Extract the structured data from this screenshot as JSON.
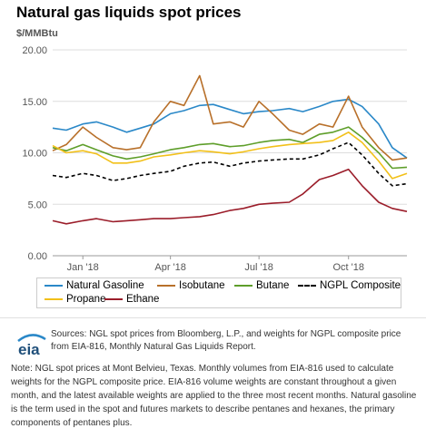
{
  "title": "Natural gas liquids spot prices",
  "unit_label": "$/MMBtu",
  "legend_items": [
    "Natural Gasoline",
    "Isobutane",
    "Butane",
    "NGPL Composite",
    "Propane",
    "Ethane"
  ],
  "sources_text": "Sources: NGL spot prices from Bloomberg, L.P., and weights for NGPL composite price from EIA-816, Monthly Natural Gas Liquids Report.",
  "note_text": "Note: NGL spot prices at Mont Belvieu, Texas. Monthly volumes from EIA-816 used to calculate weights for the NGPL composite price. EIA-816 volume weights are constant throughout a given month, and the latest available weights are applied to the three most recent months. Natural gasoline is the term used in the spot and futures markets to describe pentanes and hexanes, the primary components of pentanes plus.",
  "logo_text": "eia",
  "chart_data": {
    "type": "line",
    "title": "Natural gas liquids spot prices",
    "ylabel": "$/MMBtu",
    "xlabel": "",
    "ylim": [
      0,
      20
    ],
    "yticks": [
      "0.00",
      "5.00",
      "10.00",
      "15.00",
      "20.00"
    ],
    "xlim": [
      "2017-12-01",
      "2018-11-30"
    ],
    "xticks": [
      {
        "label": "Jan '18",
        "date": "2018-01-01"
      },
      {
        "label": "Apr '18",
        "date": "2018-04-01"
      },
      {
        "label": "Jul '18",
        "date": "2018-07-01"
      },
      {
        "label": "Oct '18",
        "date": "2018-10-01"
      }
    ],
    "grid": "horizontal",
    "legend_position": "bottom",
    "x": [
      "2017-12-01",
      "2017-12-15",
      "2018-01-01",
      "2018-01-15",
      "2018-02-01",
      "2018-02-15",
      "2018-03-01",
      "2018-03-15",
      "2018-04-01",
      "2018-04-15",
      "2018-05-01",
      "2018-05-15",
      "2018-06-01",
      "2018-06-15",
      "2018-07-01",
      "2018-07-15",
      "2018-08-01",
      "2018-08-15",
      "2018-09-01",
      "2018-09-15",
      "2018-10-01",
      "2018-10-15",
      "2018-11-01",
      "2018-11-15",
      "2018-11-30"
    ],
    "series": [
      {
        "name": "Natural Gasoline",
        "color": "#2a88c8",
        "values": [
          12.4,
          12.2,
          12.8,
          13.0,
          12.5,
          12.0,
          12.4,
          12.8,
          13.8,
          14.1,
          14.6,
          14.7,
          14.2,
          13.8,
          14.0,
          14.1,
          14.3,
          14.0,
          14.5,
          15.0,
          15.2,
          14.5,
          12.8,
          10.5,
          9.5
        ]
      },
      {
        "name": "Isobutane",
        "color": "#b8702a",
        "values": [
          10.2,
          10.8,
          12.5,
          11.5,
          10.5,
          10.3,
          10.5,
          13.0,
          15.0,
          14.6,
          17.5,
          12.8,
          13.0,
          12.5,
          15.0,
          13.8,
          12.2,
          11.8,
          12.8,
          12.5,
          15.5,
          12.5,
          10.5,
          9.3,
          9.5
        ]
      },
      {
        "name": "Butane",
        "color": "#5e9e2a",
        "values": [
          10.5,
          10.2,
          10.8,
          10.3,
          9.7,
          9.4,
          9.6,
          9.9,
          10.3,
          10.5,
          10.8,
          10.9,
          10.6,
          10.7,
          11.0,
          11.2,
          11.3,
          11.0,
          11.8,
          12.0,
          12.5,
          11.5,
          10.0,
          8.5,
          8.6
        ]
      },
      {
        "name": "NGPL Composite",
        "color": "#000000",
        "dashed": true,
        "values": [
          7.8,
          7.6,
          8.0,
          7.8,
          7.3,
          7.5,
          7.8,
          8.0,
          8.2,
          8.7,
          9.0,
          9.1,
          8.7,
          9.0,
          9.2,
          9.3,
          9.4,
          9.4,
          9.8,
          10.4,
          11.0,
          9.8,
          8.0,
          6.8,
          7.0
        ]
      },
      {
        "name": "Propane",
        "color": "#f2c019",
        "values": [
          10.7,
          10.0,
          10.2,
          9.9,
          9.0,
          9.0,
          9.2,
          9.6,
          9.8,
          10.0,
          10.2,
          10.1,
          9.9,
          10.1,
          10.4,
          10.6,
          10.8,
          10.9,
          11.0,
          11.2,
          12.0,
          11.0,
          9.2,
          7.5,
          8.0
        ]
      },
      {
        "name": "Ethane",
        "color": "#9b1d2a",
        "values": [
          3.4,
          3.1,
          3.4,
          3.6,
          3.3,
          3.4,
          3.5,
          3.6,
          3.6,
          3.7,
          3.8,
          4.0,
          4.4,
          4.6,
          5.0,
          5.1,
          5.2,
          6.0,
          7.4,
          7.8,
          8.4,
          6.8,
          5.2,
          4.6,
          4.3
        ]
      }
    ]
  }
}
